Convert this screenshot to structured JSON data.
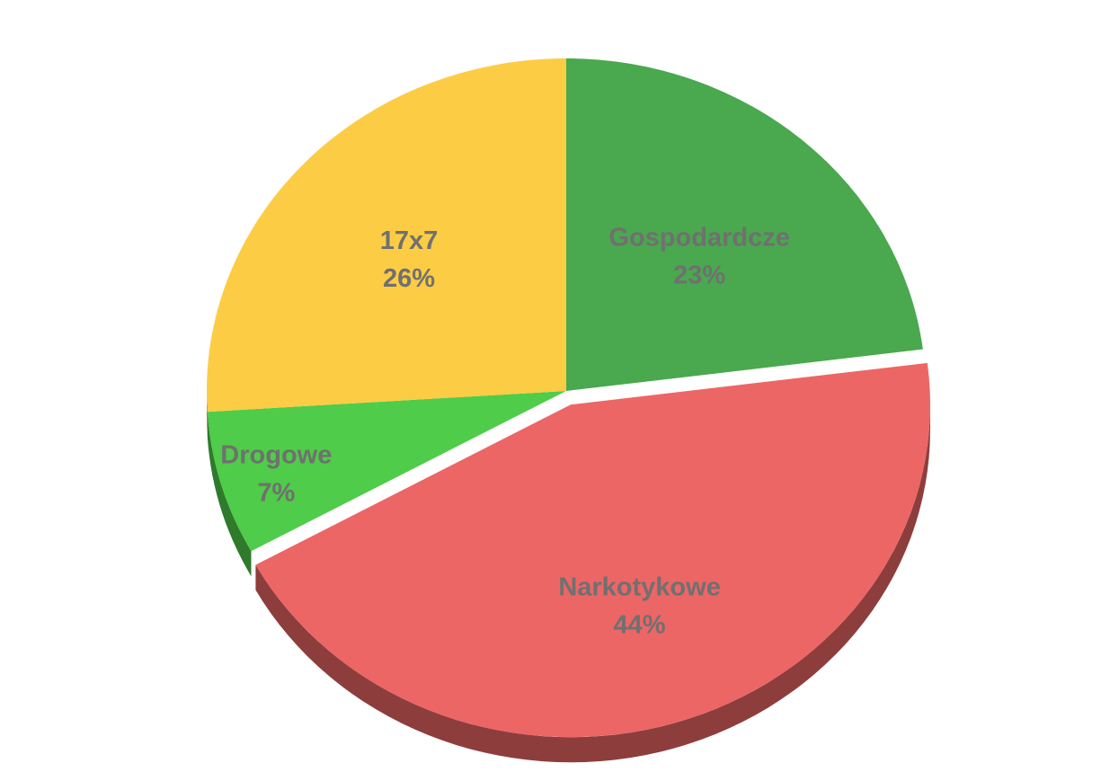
{
  "chart_data": {
    "type": "pie",
    "title": "",
    "slices": [
      {
        "label": "Gospodardcze",
        "value": 23,
        "display": "23%",
        "color": "#4aa84e"
      },
      {
        "label": "Narkotykowe",
        "value": 44,
        "display": "44%",
        "color": "#ec6666"
      },
      {
        "label": "Drogowe",
        "value": 7,
        "display": "7%",
        "color": "#4fcc49"
      },
      {
        "label": "17x7",
        "value": 26,
        "display": "26%",
        "color": "#fccc45"
      }
    ],
    "legend": "none",
    "data_labels": "inside"
  }
}
